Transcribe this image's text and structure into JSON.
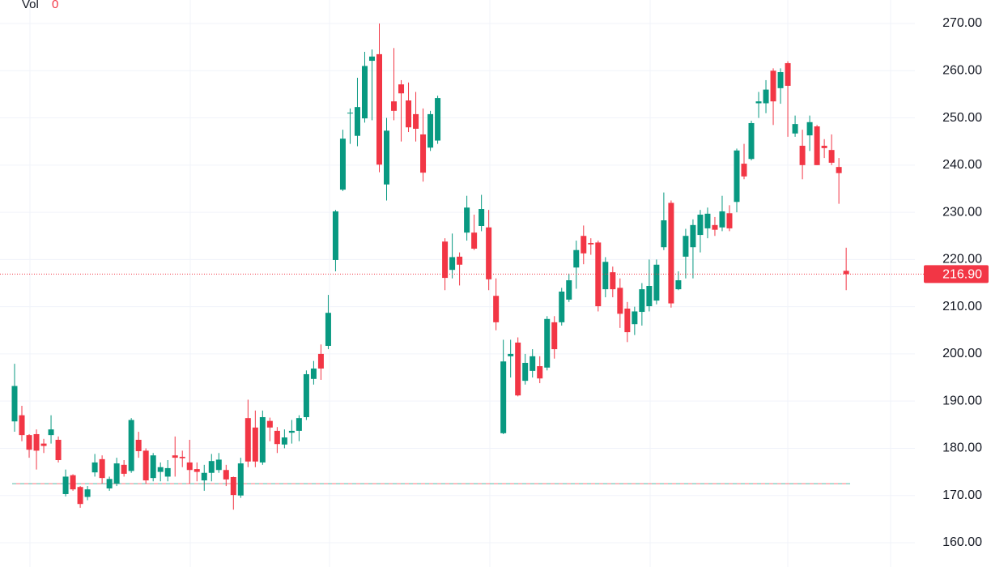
{
  "chart_data": {
    "type": "candlestick",
    "volume_label": "Vol",
    "volume_value": 0,
    "up_color": "#089981",
    "down_color": "#f23645",
    "ylim": [
      154.85,
      274.98
    ],
    "yticks": [
      {
        "value": 160,
        "label": "160.00"
      },
      {
        "value": 170,
        "label": "170.00"
      },
      {
        "value": 180,
        "label": "180.00"
      },
      {
        "value": 190,
        "label": "190.00"
      },
      {
        "value": 200,
        "label": "200.00"
      },
      {
        "value": 210,
        "label": "210.00"
      },
      {
        "value": 220,
        "label": "220.00"
      },
      {
        "value": 230,
        "label": "230.00"
      },
      {
        "value": 240,
        "label": "240.00"
      },
      {
        "value": 250,
        "label": "250.00"
      },
      {
        "value": 260,
        "label": "260.00"
      },
      {
        "value": 270,
        "label": "270.00"
      }
    ],
    "grid": true,
    "last_price": {
      "value": 216.9,
      "label": "216.90"
    },
    "reference_line": 172.5,
    "open": [
      185.7,
      187,
      182.8,
      183,
      181,
      182.8,
      181.8,
      170.3,
      174.3,
      171.8,
      169.7,
      174.9,
      177.7,
      171.5,
      172.5,
      176.5,
      175.2,
      181.8,
      179.5,
      173.7,
      175,
      174,
      178.5,
      178.2,
      177,
      175.6,
      173.2,
      174.8,
      175.4,
      175.4,
      173.9,
      170,
      186.4,
      184.4,
      177,
      185.8,
      183.7,
      180.8,
      183.3,
      183.7,
      186.6,
      194.7,
      200,
      201.7,
      219.9,
      234.8,
      251,
      246.2,
      249.9,
      262.1,
      263.5,
      235.9,
      253.5,
      257.1,
      253.7,
      250.8,
      246.5,
      243.7,
      245.2,
      223.8,
      217.8,
      220.6,
      225.7,
      225.7,
      227.1,
      226.8,
      212.3,
      183.2,
      199.5,
      202.4,
      194.3,
      196.4,
      197.4,
      197.1,
      206.7,
      206.7,
      211.5,
      218.3,
      225,
      223.5,
      223.6,
      213.7,
      217.3,
      214,
      209.6,
      206.3,
      208.9,
      210.1,
      211.3,
      222.6,
      232,
      213.7,
      220.6,
      222.6,
      225.2,
      226.6,
      227.3,
      226.8,
      229.8,
      232.2,
      240.3,
      241.3,
      253.1,
      253.1,
      260,
      256.3,
      261.6,
      246.7,
      244.1,
      246.3,
      248.2,
      244.1,
      243.2,
      239.6,
      217.6
    ],
    "high": [
      197.9,
      189,
      183,
      184,
      182,
      187,
      182.5,
      175.5,
      174.5,
      172,
      172,
      178.8,
      178.5,
      174,
      178,
      177.5,
      186.4,
      183.5,
      180,
      179,
      177,
      177.5,
      182.5,
      179.5,
      181.8,
      177,
      176.5,
      178.8,
      179,
      176.5,
      174,
      178,
      190.3,
      188,
      188,
      186.5,
      184.5,
      184,
      186,
      187,
      196.5,
      198.5,
      202,
      212.5,
      230.5,
      247.5,
      252,
      258.5,
      264,
      264.5,
      270,
      250,
      264.8,
      258,
      257.5,
      255.5,
      252,
      251.5,
      254.7,
      224.5,
      225.5,
      221.5,
      233.5,
      229.5,
      233.7,
      230.5,
      216,
      203,
      203,
      203.5,
      200,
      201,
      199.5,
      208,
      208,
      214,
      217,
      224,
      227.2,
      224.5,
      224,
      220.5,
      218.5,
      216,
      211,
      210,
      215,
      220,
      220,
      234.2,
      232.5,
      217.5,
      226.5,
      228.5,
      230.5,
      231,
      229,
      233.5,
      231.5,
      243.5,
      244.5,
      249.4,
      255.5,
      258,
      260.5,
      260.5,
      262,
      250.5,
      247.5,
      250.5,
      248.5,
      245.5,
      246.5,
      241.5,
      222.5
    ],
    "low": [
      183.5,
      181.5,
      178,
      175.5,
      179,
      181,
      177,
      169.8,
      171,
      167.4,
      169,
      174,
      172.5,
      171,
      172,
      174,
      174.8,
      178,
      172.5,
      173,
      173,
      173,
      174,
      176,
      172.5,
      173,
      171,
      173,
      174.8,
      172,
      167,
      169.5,
      176,
      176,
      176.5,
      181.5,
      179,
      180,
      181,
      181.5,
      186,
      193.5,
      194.5,
      201,
      217.5,
      234.5,
      244.5,
      244,
      249,
      249.5,
      238.5,
      232.5,
      249.5,
      245,
      247,
      245,
      236.5,
      243,
      244.5,
      213.5,
      216,
      214.5,
      224,
      222,
      226,
      213.5,
      205,
      183,
      195,
      191,
      193.5,
      195,
      193.8,
      196.5,
      199,
      206,
      211,
      213.8,
      219,
      221,
      209,
      212,
      212,
      205.5,
      202.5,
      204,
      206,
      209,
      210.5,
      222,
      209.8,
      213.5,
      216,
      216,
      221.5,
      224.5,
      225,
      226,
      226,
      230,
      237,
      241,
      250,
      251,
      248.5,
      253,
      246,
      246,
      237,
      243,
      240,
      241.5,
      240,
      231.8,
      213.5
    ],
    "close": [
      193.2,
      182.8,
      179.7,
      179.5,
      180.5,
      184,
      177.5,
      174,
      171.3,
      168.2,
      171.3,
      177,
      173.7,
      173.5,
      176.8,
      174.6,
      186,
      179.4,
      173.2,
      178.5,
      176,
      175.8,
      178,
      177.9,
      175.4,
      175,
      174.8,
      177.3,
      177.6,
      173.4,
      170.1,
      176.8,
      177.2,
      177.2,
      186.6,
      184.4,
      180.9,
      182.3,
      183.7,
      186.4,
      195.7,
      196.9,
      196.9,
      208.7,
      230.2,
      245.6,
      251.1,
      252.3,
      261,
      263,
      240.1,
      247.3,
      251.5,
      255.2,
      248,
      247.7,
      238.4,
      250.8,
      254.2,
      216.1,
      220.5,
      218.9,
      231,
      222.3,
      230.7,
      215.8,
      206.7,
      198.4,
      200,
      191.2,
      198.1,
      199.5,
      194.8,
      207.4,
      201,
      213.2,
      215.6,
      222,
      221.3,
      223.2,
      210.1,
      219.5,
      213.7,
      208.5,
      204.6,
      209,
      213.7,
      214.4,
      218.9,
      228.3,
      210.7,
      215.6,
      225,
      227.3,
      229.5,
      229.7,
      226.3,
      230.2,
      226.6,
      243.1,
      237.6,
      248.9,
      253.5,
      256,
      253.5,
      259.7,
      256.8,
      248.7,
      240,
      249.1,
      240,
      243.6,
      240.5,
      238.3,
      216.9
    ]
  }
}
